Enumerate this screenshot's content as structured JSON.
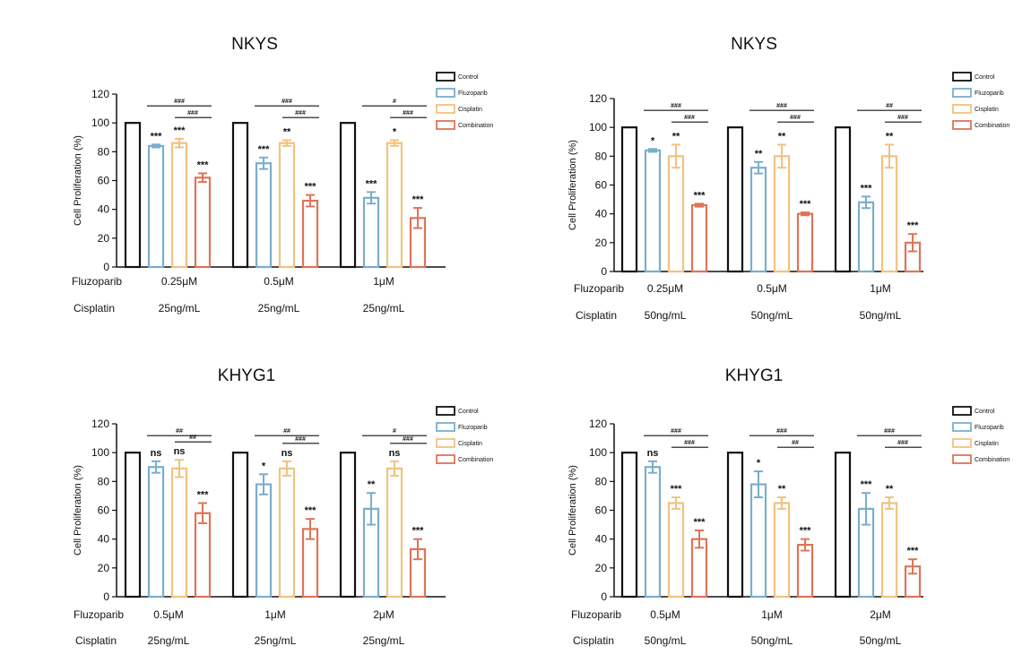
{
  "figure": {
    "description_panels": 4
  },
  "chart_data": [
    {
      "type": "bar",
      "title": "NKYS",
      "ylabel": "Cell Proliferation (%)",
      "ylim": [
        0,
        120
      ],
      "yticks": [
        0,
        20,
        40,
        60,
        80,
        100,
        120
      ],
      "legend": [
        "Control",
        "Fluzoparib",
        "Cisplatin",
        "Combination"
      ],
      "row_labels": [
        "Fluzoparib",
        "Cisplatin"
      ],
      "groups": [
        {
          "fluzoparib": "0.25μM",
          "cisplatin": "25ng/mL",
          "values": [
            100,
            84,
            86,
            62
          ],
          "errors": [
            0,
            1,
            3,
            3
          ],
          "stars": [
            "",
            "***",
            "***",
            "***"
          ],
          "hash_top": "###",
          "hash_bottom": "###"
        },
        {
          "fluzoparib": "0.5μM",
          "cisplatin": "25ng/mL",
          "values": [
            100,
            72,
            86,
            46
          ],
          "errors": [
            0,
            4,
            2,
            4
          ],
          "stars": [
            "",
            "***",
            "**",
            "***"
          ],
          "hash_top": "###",
          "hash_bottom": "###"
        },
        {
          "fluzoparib": "1μM",
          "cisplatin": "25ng/mL",
          "values": [
            100,
            48,
            86,
            34
          ],
          "errors": [
            0,
            4,
            2,
            7
          ],
          "stars": [
            "",
            "***",
            "*",
            "***"
          ],
          "hash_top": "#",
          "hash_bottom": "###"
        }
      ]
    },
    {
      "type": "bar",
      "title": "NKYS",
      "ylabel": "Cell Proliferation (%)",
      "ylim": [
        0,
        120
      ],
      "yticks": [
        0,
        20,
        40,
        60,
        80,
        100,
        120
      ],
      "legend": [
        "Control",
        "Fluzoparib",
        "Cisplatin",
        "Combination"
      ],
      "row_labels": [
        "Fluzoparib",
        "Cisplatin"
      ],
      "groups": [
        {
          "fluzoparib": "0.25μM",
          "cisplatin": "50ng/mL",
          "values": [
            100,
            84,
            80,
            46
          ],
          "errors": [
            0,
            1,
            8,
            1
          ],
          "stars": [
            "",
            "*",
            "**",
            "***"
          ],
          "hash_top": "###",
          "hash_bottom": "###"
        },
        {
          "fluzoparib": "0.5μM",
          "cisplatin": "50ng/mL",
          "values": [
            100,
            72,
            80,
            40
          ],
          "errors": [
            0,
            4,
            8,
            1
          ],
          "stars": [
            "",
            "**",
            "**",
            "***"
          ],
          "hash_top": "###",
          "hash_bottom": "###"
        },
        {
          "fluzoparib": "1μM",
          "cisplatin": "50ng/mL",
          "values": [
            100,
            48,
            80,
            20
          ],
          "errors": [
            0,
            4,
            8,
            6
          ],
          "stars": [
            "",
            "***",
            "**",
            "***"
          ],
          "hash_top": "##",
          "hash_bottom": "###"
        }
      ]
    },
    {
      "type": "bar",
      "title": "KHYG1",
      "ylabel": "Cell Proliferation (%)",
      "ylim": [
        0,
        120
      ],
      "yticks": [
        0,
        20,
        40,
        60,
        80,
        100,
        120
      ],
      "legend": [
        "Control",
        "Fluzoparib",
        "Cisplatin",
        "Combination"
      ],
      "row_labels": [
        "Fluzoparib",
        "Cisplatin"
      ],
      "groups": [
        {
          "fluzoparib": "0.5μM",
          "cisplatin": "25ng/mL",
          "values": [
            100,
            90,
            89,
            58
          ],
          "errors": [
            0,
            4,
            6,
            7
          ],
          "stars": [
            "",
            "ns",
            "ns",
            "***"
          ],
          "hash_top": "##",
          "hash_bottom": "##"
        },
        {
          "fluzoparib": "1μM",
          "cisplatin": "25ng/mL",
          "values": [
            100,
            78,
            89,
            47
          ],
          "errors": [
            0,
            7,
            5,
            7
          ],
          "stars": [
            "",
            "*",
            "ns",
            "***"
          ],
          "hash_top": "##",
          "hash_bottom": "###"
        },
        {
          "fluzoparib": "2μM",
          "cisplatin": "25ng/mL",
          "values": [
            100,
            61,
            89,
            33
          ],
          "errors": [
            0,
            11,
            5,
            7
          ],
          "stars": [
            "",
            "**",
            "ns",
            "***"
          ],
          "hash_top": "#",
          "hash_bottom": "###"
        }
      ]
    },
    {
      "type": "bar",
      "title": "KHYG1",
      "ylabel": "Cell Proliferation (%)",
      "ylim": [
        0,
        120
      ],
      "yticks": [
        0,
        20,
        40,
        60,
        80,
        100,
        120
      ],
      "legend": [
        "Control",
        "Fluzoparib",
        "Cisplatin",
        "Combination"
      ],
      "row_labels": [
        "Fluzoparib",
        "Cisplatin"
      ],
      "groups": [
        {
          "fluzoparib": "0.5μM",
          "cisplatin": "50ng/mL",
          "values": [
            100,
            90,
            65,
            40
          ],
          "errors": [
            0,
            4,
            4,
            6
          ],
          "stars": [
            "",
            "ns",
            "***",
            "***"
          ],
          "hash_top": "###",
          "hash_bottom": "###"
        },
        {
          "fluzoparib": "1μM",
          "cisplatin": "50ng/mL",
          "values": [
            100,
            78,
            65,
            36
          ],
          "errors": [
            0,
            9,
            4,
            4
          ],
          "stars": [
            "",
            "*",
            "**",
            "***"
          ],
          "hash_top": "###",
          "hash_bottom": "##"
        },
        {
          "fluzoparib": "2μM",
          "cisplatin": "50ng/mL",
          "values": [
            100,
            61,
            65,
            21
          ],
          "errors": [
            0,
            11,
            4,
            5
          ],
          "stars": [
            "",
            "***",
            "**",
            "***"
          ],
          "hash_top": "###",
          "hash_bottom": "###"
        }
      ]
    }
  ],
  "colors": {
    "control": "#111111",
    "fluzoparib": "#7aaecb",
    "cisplatin": "#f1c27f",
    "combination": "#de7457"
  }
}
